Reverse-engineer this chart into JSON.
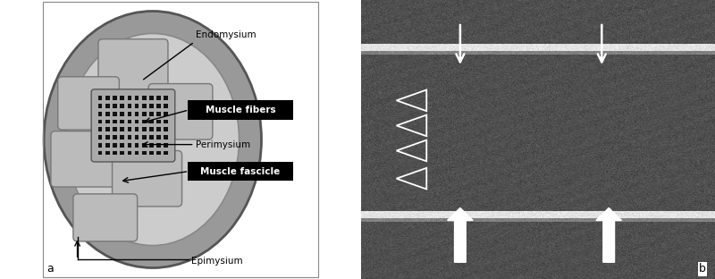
{
  "fig_width": 8.0,
  "fig_height": 3.12,
  "dpi": 100,
  "bg_color": "#ffffff",
  "panel_a_label": "a",
  "panel_b_label": "b",
  "labels": {
    "endomysium": "Endomysium",
    "muscle_fibers": "Muscle fibers",
    "perimysium": "Perimysium",
    "muscle_fascicle": "Muscle fascicle",
    "epimysium": "Epimysium"
  },
  "outer_ellipse_color": "#555555",
  "outer_fill_color": "#999999",
  "middle_fill_color": "#cccccc",
  "fascicle_border_color": "#777777",
  "fascicle_fill_color": "#bbbbbb",
  "black_square_color": "#111111",
  "label_box_color": "#000000",
  "label_text_color": "#ffffff",
  "plain_label_color": "#000000"
}
